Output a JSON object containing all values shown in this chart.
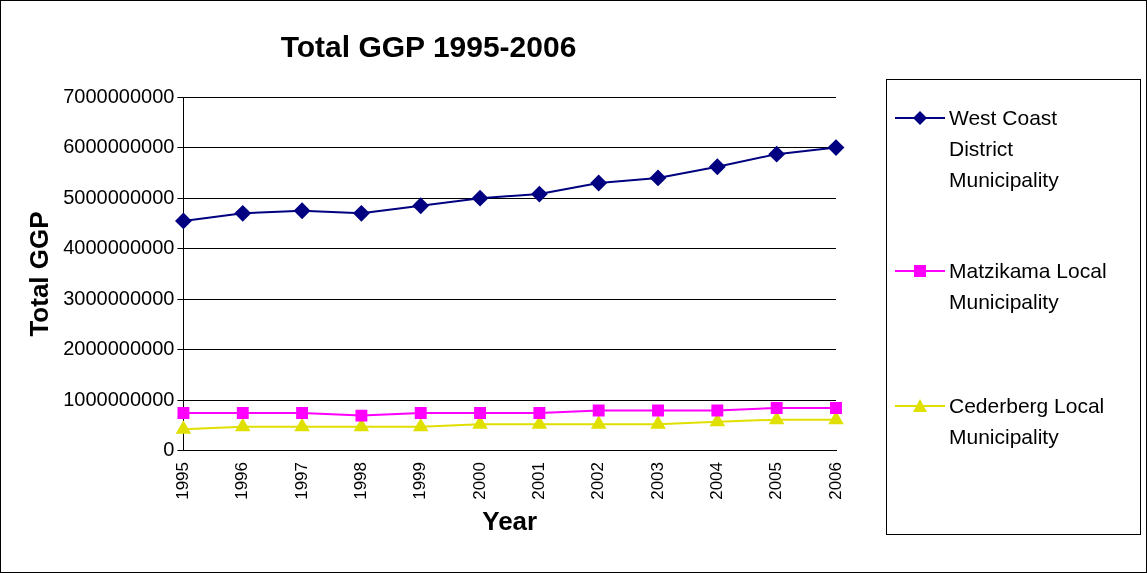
{
  "chart_data": {
    "type": "line",
    "title": "Total GGP 1995-2006",
    "xlabel": "Year",
    "ylabel": "Total GGP",
    "categories": [
      "1995",
      "1996",
      "1997",
      "1998",
      "1999",
      "2000",
      "2001",
      "2002",
      "2003",
      "2004",
      "2005",
      "2006"
    ],
    "series": [
      {
        "name": "West Coast District Municipality",
        "color": "#000080",
        "marker": "diamond",
        "values": [
          4550000000,
          4700000000,
          4750000000,
          4700000000,
          4850000000,
          5000000000,
          5080000000,
          5300000000,
          5400000000,
          5620000000,
          5870000000,
          6000000000
        ]
      },
      {
        "name": "Matzikama Local Municipality",
        "color": "#ff00ff",
        "marker": "square",
        "values": [
          750000000,
          750000000,
          750000000,
          700000000,
          750000000,
          750000000,
          750000000,
          800000000,
          800000000,
          800000000,
          850000000,
          850000000
        ]
      },
      {
        "name": "Cederberg Local Municipality",
        "color": "#e0e000",
        "marker": "triangle",
        "values": [
          430000000,
          480000000,
          480000000,
          480000000,
          480000000,
          530000000,
          530000000,
          530000000,
          530000000,
          580000000,
          620000000,
          620000000
        ]
      }
    ],
    "ylim": [
      0,
      7000000000
    ],
    "yticks": [
      0,
      1000000000,
      2000000000,
      3000000000,
      4000000000,
      5000000000,
      6000000000,
      7000000000
    ],
    "grid": "y",
    "legend": "right"
  }
}
